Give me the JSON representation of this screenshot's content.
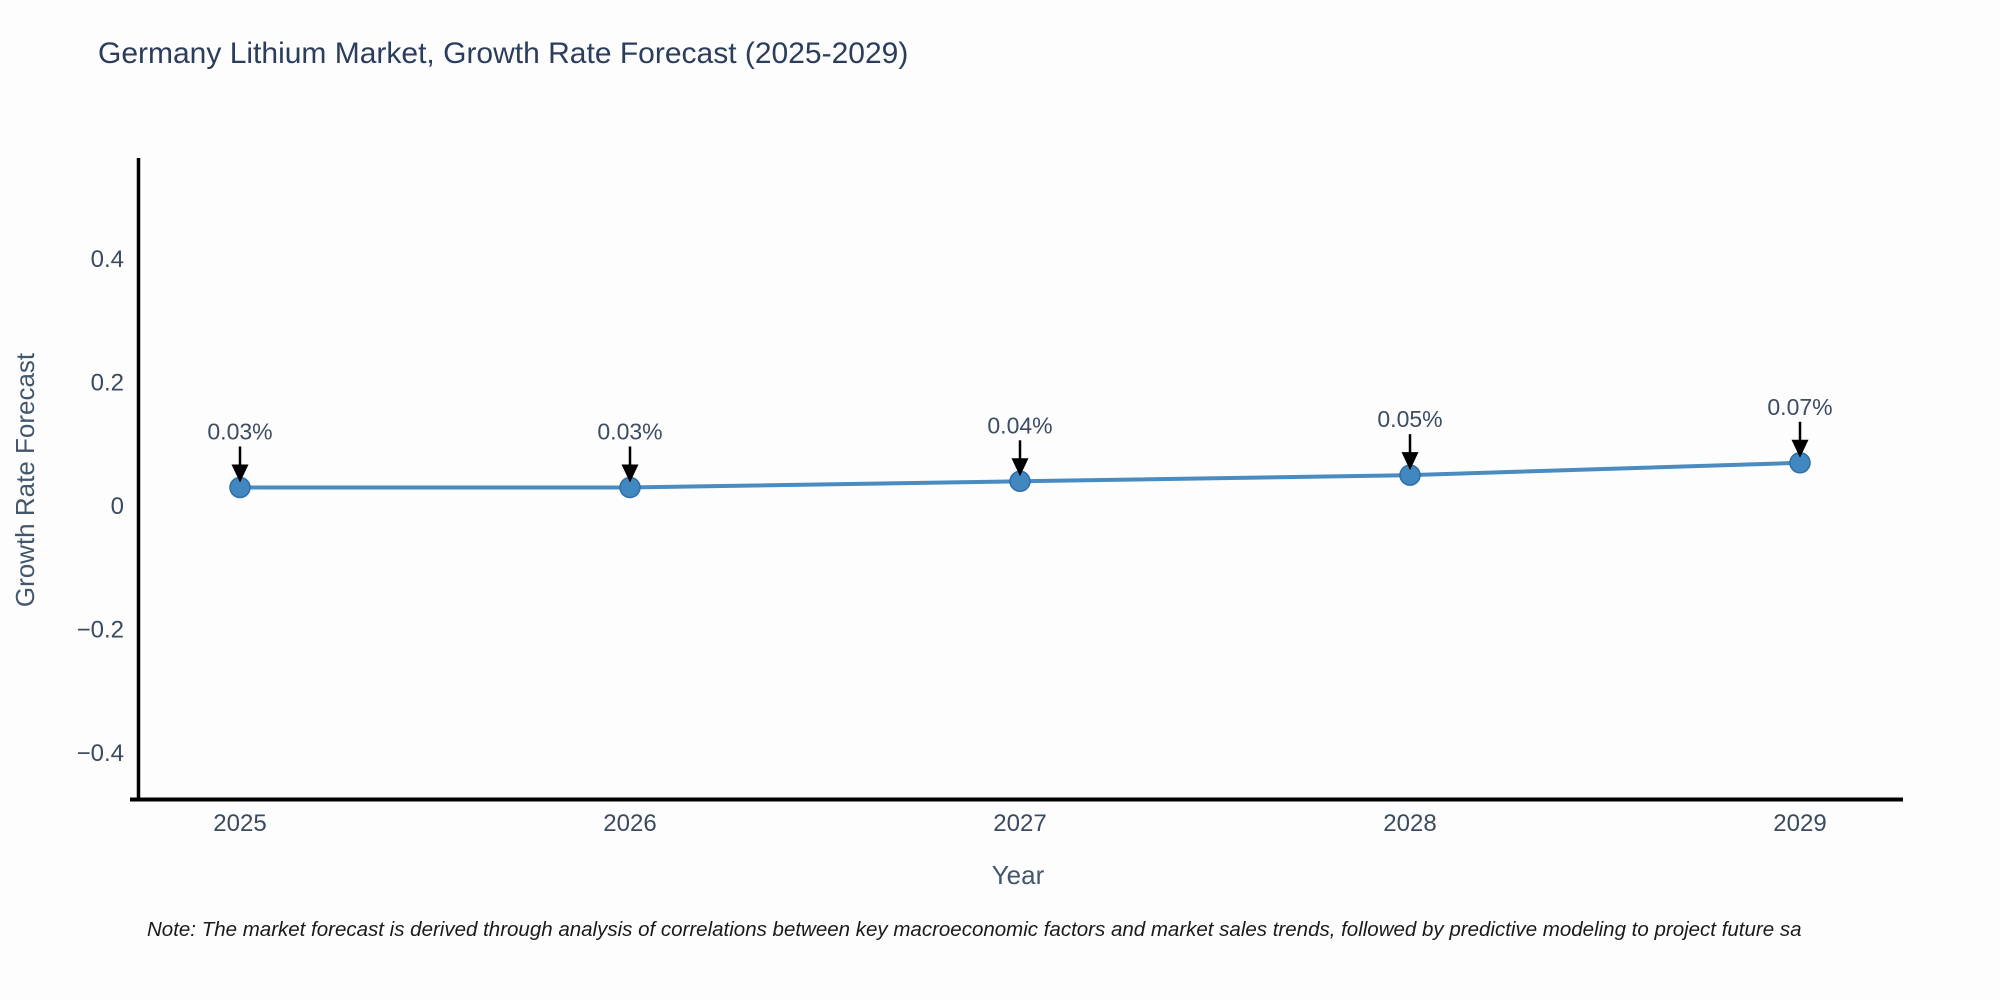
{
  "chart_data": {
    "type": "line",
    "title": "Germany Lithium Market, Growth Rate Forecast (2025-2029)",
    "xlabel": "Year",
    "ylabel": "Growth Rate Forecast",
    "categories": [
      "2025",
      "2026",
      "2027",
      "2028",
      "2029"
    ],
    "series": [
      {
        "name": "Growth Rate Forecast",
        "values": [
          0.03,
          0.03,
          0.04,
          0.05,
          0.07
        ],
        "point_labels": [
          "0.03%",
          "0.03%",
          "0.04%",
          "0.05%",
          "0.07%"
        ]
      }
    ],
    "yticks": {
      "values": [
        0.4,
        0.2,
        0,
        -0.2,
        -0.4
      ],
      "labels": [
        "0.4",
        "0.2",
        "0",
        "−0.2",
        "−0.4"
      ]
    },
    "ylim": [
      -0.48,
      0.56
    ],
    "grid": false,
    "legend": "none",
    "note": "Note: The market forecast is derived through analysis of correlations between key macroeconomic factors and market sales trends, followed by predictive modeling to project future sa",
    "colors": {
      "line": "#4a8bc0",
      "marker_fill": "#4187c0",
      "marker_edge": "#2f6ea6",
      "axis_line": "#000000",
      "tick_text": "#3b4a5f",
      "title_text": "#2b3d5c",
      "annotation_text": "#3d4c60",
      "arrow": "#000000",
      "note_text": "#1a1a1a",
      "background": "#fdfdfe"
    }
  }
}
